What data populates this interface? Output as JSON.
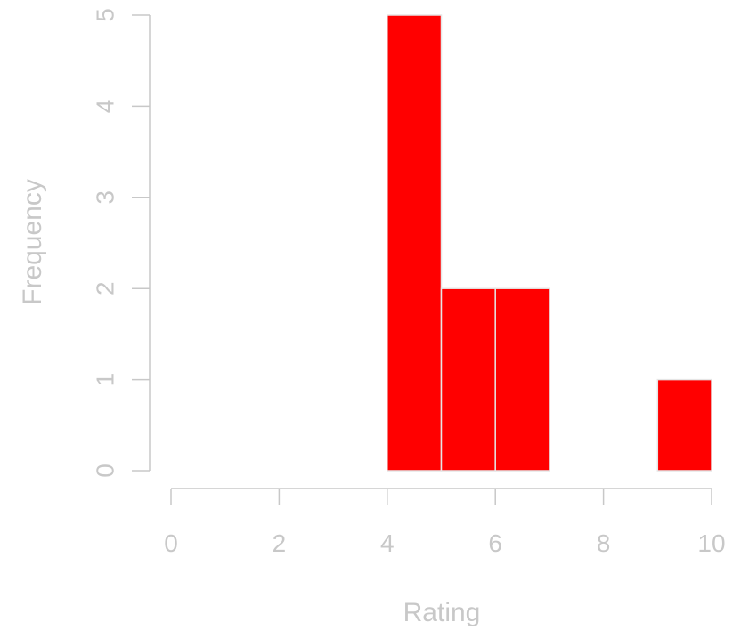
{
  "chart_data": {
    "type": "bar",
    "subtype": "histogram",
    "bins": [
      {
        "start": 4,
        "end": 5,
        "count": 5
      },
      {
        "start": 5,
        "end": 6,
        "count": 2
      },
      {
        "start": 6,
        "end": 7,
        "count": 2
      },
      {
        "start": 7,
        "end": 8,
        "count": 0
      },
      {
        "start": 8,
        "end": 9,
        "count": 0
      },
      {
        "start": 9,
        "end": 10,
        "count": 1
      }
    ],
    "xlabel": "Rating",
    "ylabel": "Frequency",
    "xlim": [
      0,
      10
    ],
    "ylim": [
      0,
      5
    ],
    "x_ticks": [
      "0",
      "2",
      "4",
      "6",
      "8",
      "10"
    ],
    "y_ticks": [
      "0",
      "1",
      "2",
      "3",
      "4",
      "5"
    ],
    "grid": false,
    "colors": {
      "bar_fill": "#ff0000",
      "bar_border": "#e6e6e6",
      "axis": "#c8c8c8",
      "text": "#c8c8c8"
    }
  }
}
